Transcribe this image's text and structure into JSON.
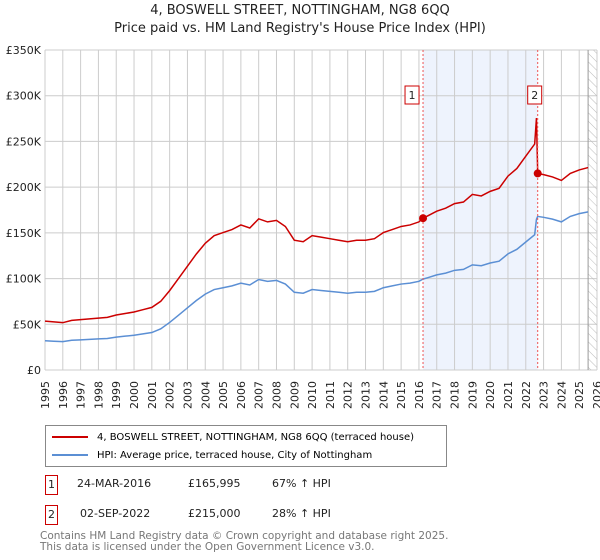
{
  "title_line1": "4, BOSWELL STREET, NOTTINGHAM, NG8 6QQ",
  "title_line2": "Price paid vs. HM Land Registry's House Price Index (HPI)",
  "colors": {
    "property": "#cc0000",
    "hpi": "#5b8fd4",
    "shade": "#eef3fd",
    "grid": "#cccccc"
  },
  "chart_data": {
    "type": "line",
    "title": "Price paid vs. HM Land Registry's House Price Index (HPI)",
    "xlim": [
      1995,
      2026
    ],
    "ylim": [
      0,
      350000
    ],
    "yticks": [
      0,
      50000,
      100000,
      150000,
      200000,
      250000,
      300000,
      350000
    ],
    "ytick_labels": [
      "£0",
      "£50K",
      "£100K",
      "£150K",
      "£200K",
      "£250K",
      "£300K",
      "£350K"
    ],
    "xticks": [
      1995,
      1996,
      1997,
      1998,
      1999,
      2000,
      2001,
      2002,
      2003,
      2004,
      2005,
      2006,
      2007,
      2008,
      2009,
      2010,
      2011,
      2012,
      2013,
      2014,
      2015,
      2016,
      2017,
      2018,
      2019,
      2020,
      2021,
      2022,
      2023,
      2024,
      2025,
      2026
    ],
    "grid": true,
    "forecast_hatch_from": 2025.5,
    "hpi_series": {
      "name": "HPI: Average price, terraced house, City of Nottingham",
      "x": [
        1995,
        1995.5,
        1996,
        1996.5,
        1997,
        1997.5,
        1998,
        1998.5,
        1999,
        1999.5,
        2000,
        2000.5,
        2001,
        2001.5,
        2002,
        2002.5,
        2003,
        2003.5,
        2004,
        2004.5,
        2005,
        2005.5,
        2006,
        2006.5,
        2007,
        2007.5,
        2008,
        2008.5,
        2009,
        2009.5,
        2010,
        2010.5,
        2011,
        2011.5,
        2012,
        2012.5,
        2013,
        2013.5,
        2014,
        2014.5,
        2015,
        2015.5,
        2016,
        2016.23,
        2016.5,
        2017,
        2017.5,
        2018,
        2018.5,
        2019,
        2019.5,
        2020,
        2020.5,
        2021,
        2021.5,
        2022,
        2022.5,
        2022.6,
        2022.67,
        2023,
        2023.5,
        2024,
        2024.5,
        2025,
        2025.5
      ],
      "values": [
        32000,
        31500,
        31000,
        32500,
        33000,
        33500,
        34000,
        34500,
        36000,
        37000,
        38000,
        39500,
        41000,
        45000,
        52000,
        60000,
        68000,
        76000,
        83000,
        88000,
        90000,
        92000,
        95000,
        93000,
        99000,
        97000,
        98000,
        94000,
        85000,
        84000,
        88000,
        87000,
        86000,
        85000,
        84000,
        85000,
        85000,
        86000,
        90000,
        92000,
        94000,
        95000,
        97000,
        99400,
        101000,
        104000,
        106000,
        109000,
        110000,
        115000,
        114000,
        117000,
        119000,
        127000,
        132000,
        140000,
        148000,
        165000,
        168000,
        167000,
        165000,
        162000,
        168000,
        171000,
        173000
      ]
    },
    "property_series": {
      "name": "4, BOSWELL STREET, NOTTINGHAM, NG8 6QQ (terraced house)"
    },
    "sales": [
      {
        "id": "1",
        "x": 2016.23,
        "price": 165995,
        "date": "24-MAR-2016",
        "price_label": "£165,995",
        "hpi_change": "67% ↑ HPI"
      },
      {
        "id": "2",
        "x": 2022.67,
        "price": 215000,
        "date": "02-SEP-2022",
        "price_label": "£215,000",
        "hpi_change": "28% ↑ HPI"
      }
    ]
  },
  "legend": {
    "property": "4, BOSWELL STREET, NOTTINGHAM, NG8 6QQ (terraced house)",
    "hpi": "HPI: Average price, terraced house, City of Nottingham"
  },
  "footer": {
    "line1": "Contains HM Land Registry data © Crown copyright and database right 2025.",
    "line2": "This data is licensed under the Open Government Licence v3.0."
  }
}
